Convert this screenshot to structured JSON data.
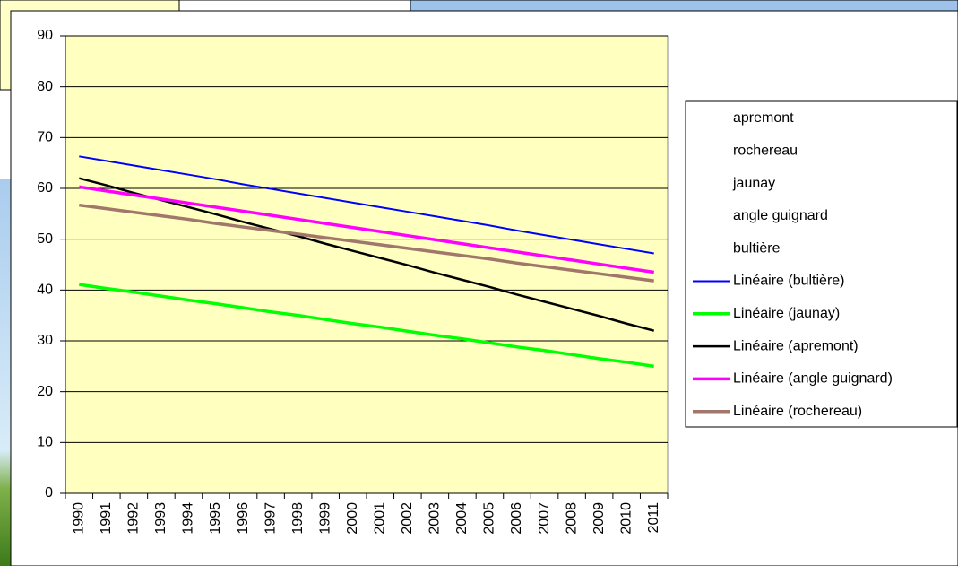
{
  "chart_data": {
    "type": "line",
    "categories": [
      "1990",
      "1991",
      "1992",
      "1993",
      "1994",
      "1995",
      "1996",
      "1997",
      "1998",
      "1999",
      "2000",
      "2001",
      "2002",
      "2003",
      "2004",
      "2005",
      "2006",
      "2007",
      "2008",
      "2009",
      "2010",
      "2011"
    ],
    "ylim": [
      0,
      90
    ],
    "yticks": [
      0,
      10,
      20,
      30,
      40,
      50,
      60,
      70,
      80,
      90
    ],
    "grid": true,
    "plot_background": "#ffffc0",
    "hidden_series": [
      "apremont",
      "rochereau",
      "jaunay",
      "angle guignard",
      "bultière"
    ],
    "series": [
      {
        "name": "Linéaire (bultière)",
        "color": "#0000ff",
        "width": 2,
        "values": [
          66.3,
          65.4,
          64.5,
          63.6,
          62.7,
          61.8,
          60.8,
          59.9,
          59.0,
          58.1,
          57.2,
          56.3,
          55.4,
          54.5,
          53.6,
          52.7,
          51.7,
          50.8,
          49.9,
          49.0,
          48.1,
          47.2
        ]
      },
      {
        "name": "Linéaire (jaunay)",
        "color": "#00ff00",
        "width": 3.5,
        "values": [
          41.1,
          40.3,
          39.6,
          38.8,
          38.0,
          37.3,
          36.5,
          35.7,
          35.0,
          34.2,
          33.4,
          32.7,
          31.9,
          31.1,
          30.4,
          29.6,
          28.8,
          28.1,
          27.3,
          26.5,
          25.8,
          25.0
        ]
      },
      {
        "name": "Linéaire (apremont)",
        "color": "#000000",
        "width": 2.5,
        "values": [
          62.0,
          60.6,
          59.1,
          57.7,
          56.3,
          54.9,
          53.4,
          52.0,
          50.6,
          49.1,
          47.7,
          46.3,
          44.9,
          43.4,
          42.0,
          40.6,
          39.1,
          37.7,
          36.3,
          34.9,
          33.4,
          32.0
        ]
      },
      {
        "name": "Linéaire (angle guignard)",
        "color": "#ff00ff",
        "width": 3.5,
        "values": [
          60.3,
          59.5,
          58.7,
          57.9,
          57.1,
          56.3,
          55.5,
          54.7,
          53.9,
          53.1,
          52.3,
          51.5,
          50.7,
          49.9,
          49.1,
          48.3,
          47.5,
          46.7,
          45.9,
          45.1,
          44.3,
          43.5
        ]
      },
      {
        "name": "Linéaire (rochereau)",
        "color": "#a0776a",
        "width": 3.5,
        "values": [
          56.7,
          56.0,
          55.3,
          54.6,
          53.9,
          53.1,
          52.4,
          51.7,
          51.0,
          50.3,
          49.6,
          48.9,
          48.2,
          47.5,
          46.8,
          46.1,
          45.3,
          44.6,
          43.9,
          43.2,
          42.5,
          41.8
        ]
      }
    ]
  }
}
